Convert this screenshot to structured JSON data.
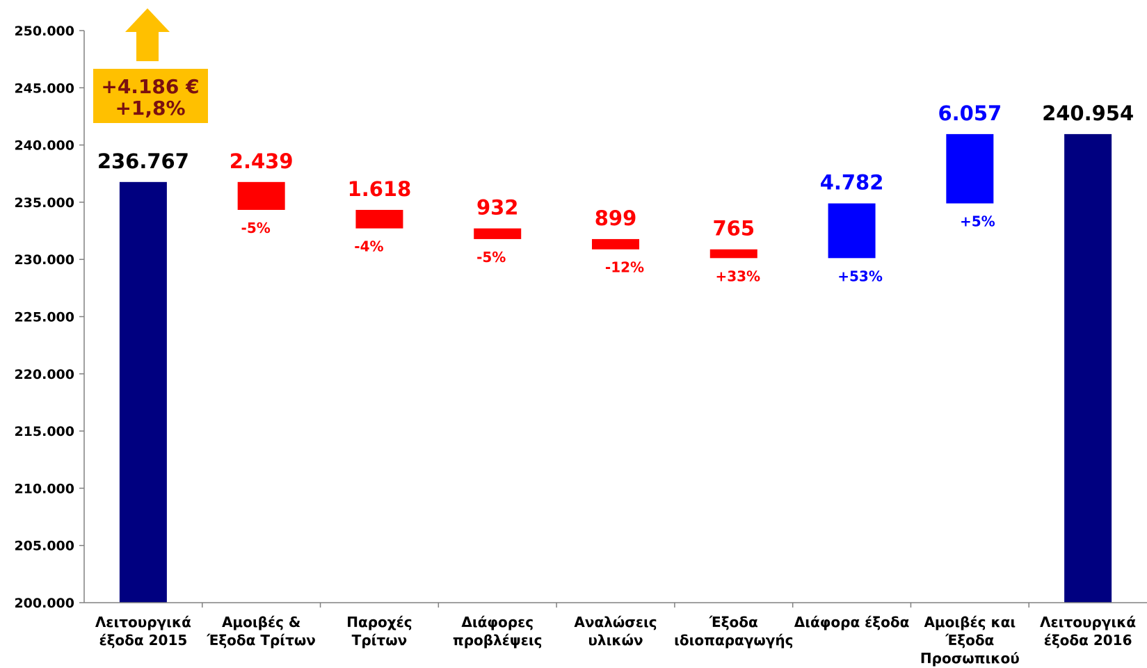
{
  "colors": {
    "total": "#000080",
    "decrease": "#ff0000",
    "increase": "#0000ff",
    "callout": "#ffc000",
    "callout_text": "#7a1010",
    "axis": "#808080"
  },
  "annotation": {
    "line1": "+4.186 €",
    "line2": "+1,8%",
    "icon": "arrow-up-icon"
  },
  "chart_data": {
    "type": "bar",
    "variant": "waterfall",
    "ylim": [
      200000,
      250000
    ],
    "yticks": [
      "200.000",
      "205.000",
      "210.000",
      "215.000",
      "220.000",
      "225.000",
      "230.000",
      "235.000",
      "240.000",
      "245.000",
      "250.000"
    ],
    "grid": false,
    "legend": "none",
    "bars": [
      {
        "category": [
          "Λειτουργικά",
          "έξοδα 2015"
        ],
        "kind": "total",
        "start": 200000,
        "end": 236767,
        "label": "236.767",
        "pct": ""
      },
      {
        "category": [
          "Αμοιβές &",
          "Έξοδα Τρίτων"
        ],
        "kind": "decrease",
        "start": 236767,
        "end": 234328,
        "label": "2.439",
        "pct": "-5%"
      },
      {
        "category": [
          "Παροχές",
          "Τρίτων"
        ],
        "kind": "decrease",
        "start": 234328,
        "end": 232710,
        "label": "1.618",
        "pct": "-4%"
      },
      {
        "category": [
          "Διάφορες",
          "προβλέψεις"
        ],
        "kind": "decrease",
        "start": 232710,
        "end": 231778,
        "label": "932",
        "pct": "-5%"
      },
      {
        "category": [
          "Αναλώσεις",
          "υλικών"
        ],
        "kind": "decrease",
        "start": 231778,
        "end": 230879,
        "label": "899",
        "pct": "-12%"
      },
      {
        "category": [
          "Έξοδα",
          "ιδιοπαραγωγής"
        ],
        "kind": "decrease",
        "start": 230879,
        "end": 230114,
        "label": "765",
        "pct": "+33%"
      },
      {
        "category": [
          "Διάφορα έξοδα"
        ],
        "kind": "increase",
        "start": 230114,
        "end": 234896,
        "label": "4.782",
        "pct": "+53%"
      },
      {
        "category": [
          "Αμοιβές και",
          "Έξοδα",
          "Προσωπικού"
        ],
        "kind": "increase",
        "start": 234896,
        "end": 240954,
        "label": "6.057",
        "pct": "+5%"
      },
      {
        "category": [
          "Λειτουργικά",
          "έξοδα 2016"
        ],
        "kind": "total",
        "start": 200000,
        "end": 240954,
        "label": "240.954",
        "pct": ""
      }
    ]
  }
}
